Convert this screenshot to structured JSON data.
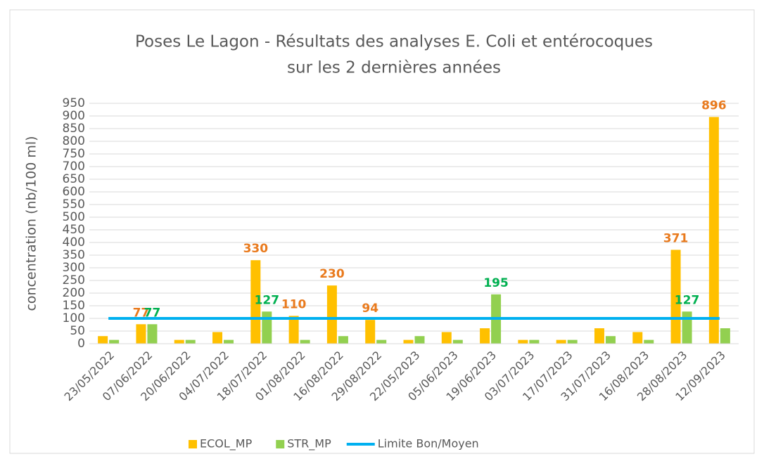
{
  "chart_data": {
    "type": "bar",
    "title": [
      "Poses Le Lagon -  Résultats des analyses E. Coli et entérocoques",
      "sur les 2 dernières années"
    ],
    "ylabel": "concentration (nb/100 ml)",
    "categories": [
      "23/05/2022",
      "07/06/2022",
      "20/06/2022",
      "04/07/2022",
      "18/07/2022",
      "01/08/2022",
      "16/08/2022",
      "29/08/2022",
      "22/05/2023",
      "05/06/2023",
      "19/06/2023",
      "03/07/2023",
      "17/07/2023",
      "31/07/2023",
      "16/08/2023",
      "28/08/2023",
      "12/09/2023"
    ],
    "series": [
      {
        "name": "ECOL_MP",
        "type": "bar",
        "color": "#ffc000",
        "label_color": "#e97a1d",
        "values": [
          30,
          77,
          15,
          46,
          330,
          110,
          230,
          94,
          15,
          46,
          61,
          15,
          15,
          61,
          46,
          371,
          896
        ],
        "value_labels": [
          null,
          "77",
          null,
          null,
          "330",
          "110",
          "230",
          "94",
          null,
          null,
          null,
          null,
          null,
          null,
          null,
          "371",
          "896"
        ]
      },
      {
        "name": "STR_MP",
        "type": "bar",
        "color": "#92d050",
        "label_color": "#00b050",
        "values": [
          15,
          77,
          15,
          15,
          127,
          15,
          30,
          15,
          30,
          15,
          195,
          15,
          15,
          30,
          15,
          127,
          61
        ],
        "value_labels": [
          null,
          "77",
          null,
          null,
          "127",
          null,
          null,
          null,
          null,
          null,
          "195",
          null,
          null,
          null,
          null,
          "127",
          null
        ]
      },
      {
        "name": "Limite Bon/Moyen",
        "type": "line",
        "color": "#00b0f0",
        "values": [
          100,
          100,
          100,
          100,
          100,
          100,
          100,
          100,
          100,
          100,
          100,
          100,
          100,
          100,
          100,
          100,
          100
        ]
      }
    ],
    "ylim": [
      0,
      950
    ],
    "yticks": [
      0,
      50,
      100,
      150,
      200,
      250,
      300,
      350,
      400,
      450,
      500,
      550,
      600,
      650,
      700,
      750,
      800,
      850,
      900,
      950
    ],
    "grid": true,
    "legend": "bottom"
  }
}
